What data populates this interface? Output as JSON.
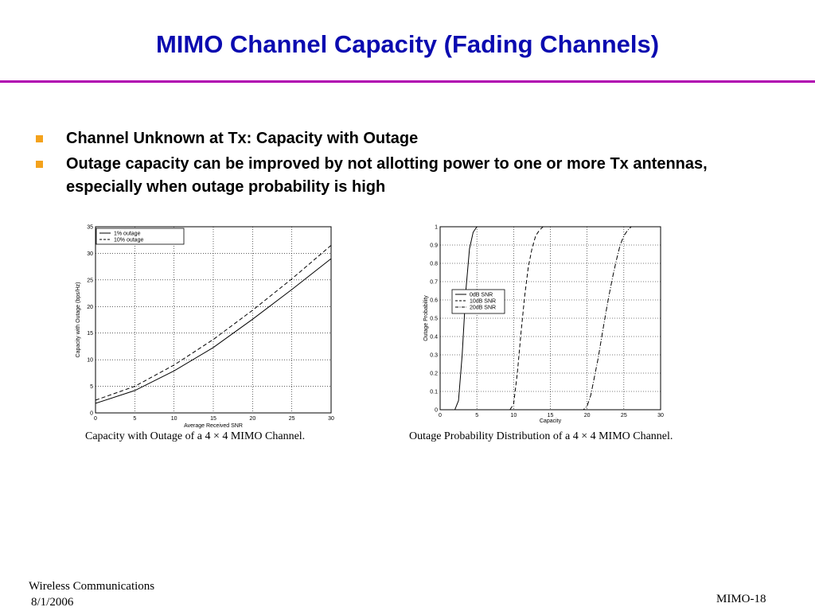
{
  "slide": {
    "title": "MIMO Channel Capacity (Fading Channels)",
    "accent_title_color": "#0b0bb0",
    "rule_color": "#b000b0",
    "bullet_color": "#f4a21c",
    "bullets": [
      "Channel Unknown at Tx: Capacity with Outage",
      "Outage capacity can be improved by not allotting power to one or more Tx antennas, especially when outage probability is high"
    ]
  },
  "figures": {
    "left_caption": "Capacity with Outage of a 4 × 4 MIMO Channel.",
    "right_caption": "Outage Probability Distribution of a 4 × 4 MIMO Channel."
  },
  "footer": {
    "course": "Wireless Communications",
    "date": "8/1/2006",
    "slide_id": "MIMO-18"
  },
  "chart_data": [
    {
      "type": "line",
      "xlabel": "Average Received SNR",
      "ylabel": "Capacity with Outage (bps/Hz)",
      "xlim": [
        0,
        30
      ],
      "ylim": [
        0,
        35
      ],
      "xticks": [
        0,
        5,
        10,
        15,
        20,
        25,
        30
      ],
      "yticks": [
        0,
        5,
        10,
        15,
        20,
        25,
        30,
        35
      ],
      "grid": true,
      "legend_position": "top-left",
      "x": [
        0,
        5,
        10,
        15,
        20,
        25,
        30
      ],
      "series": [
        {
          "name": "1% outage",
          "style": "solid",
          "values": [
            1.8,
            4.2,
            7.9,
            12.3,
            17.6,
            23.2,
            29.0
          ]
        },
        {
          "name": "10% outage",
          "style": "dashed",
          "values": [
            2.4,
            5.0,
            9.0,
            13.8,
            19.3,
            25.2,
            31.5
          ]
        }
      ]
    },
    {
      "type": "line",
      "xlabel": "Capacity",
      "ylabel": "Outage Probability",
      "xlim": [
        0,
        30
      ],
      "ylim": [
        0,
        1
      ],
      "xticks": [
        0,
        5,
        10,
        15,
        20,
        25,
        30
      ],
      "yticks": [
        0,
        0.1,
        0.2,
        0.3,
        0.4,
        0.5,
        0.6,
        0.7,
        0.8,
        0.9,
        1
      ],
      "grid": true,
      "legend_position": "center-left",
      "series": [
        {
          "name": "0dB SNR",
          "style": "solid",
          "x": [
            0,
            2.0,
            2.5,
            3.0,
            3.5,
            4.0,
            4.5,
            5.0,
            30
          ],
          "values": [
            0,
            0.0,
            0.05,
            0.3,
            0.65,
            0.88,
            0.97,
            1.0,
            1.0
          ]
        },
        {
          "name": "10dB SNR",
          "style": "dashed",
          "x": [
            0,
            9.5,
            10.0,
            10.5,
            11.0,
            11.5,
            12.0,
            12.5,
            13.0,
            13.5,
            14.0,
            30
          ],
          "values": [
            0,
            0.0,
            0.03,
            0.2,
            0.42,
            0.62,
            0.78,
            0.88,
            0.95,
            0.98,
            1.0,
            1.0
          ]
        },
        {
          "name": "20dB SNR",
          "style": "dashdot",
          "x": [
            0,
            19.5,
            20.0,
            20.5,
            21.0,
            21.5,
            22.0,
            22.5,
            23.0,
            23.5,
            24.0,
            24.5,
            25.0,
            25.5,
            26.0,
            30
          ],
          "values": [
            0,
            0.0,
            0.02,
            0.08,
            0.18,
            0.28,
            0.4,
            0.52,
            0.63,
            0.73,
            0.82,
            0.9,
            0.95,
            0.98,
            1.0,
            1.0
          ]
        }
      ]
    }
  ]
}
